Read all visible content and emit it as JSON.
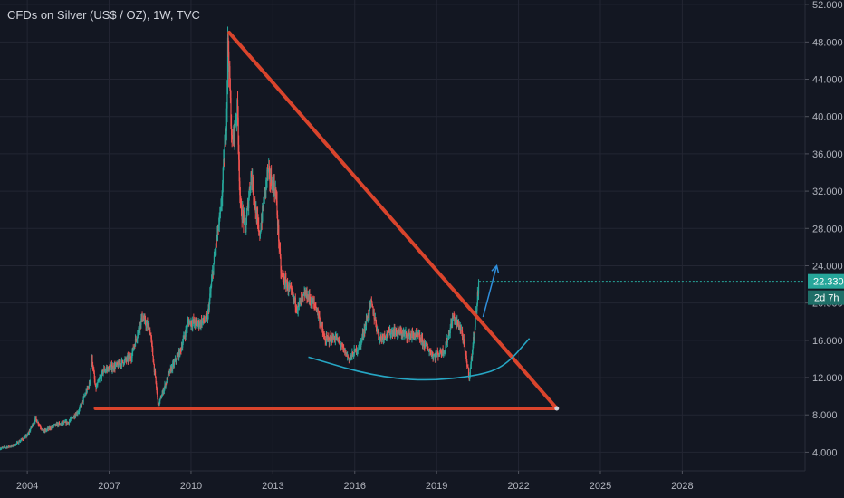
{
  "chart_data": {
    "type": "candlestick",
    "title": "CFDs on Silver (US$ / OZ), 1W, TVC",
    "x_tick_labels": [
      "2004",
      "2007",
      "2010",
      "2013",
      "2016",
      "2019",
      "2022",
      "2025",
      "2028"
    ],
    "y_tick_labels": [
      "52.000",
      "48.000",
      "44.000",
      "40.000",
      "36.000",
      "32.000",
      "28.000",
      "24.000",
      "20.000",
      "16.000",
      "12.000",
      "8.000",
      "4.000"
    ],
    "ylim": [
      2.0,
      52.5
    ],
    "xlim": [
      2003.0,
      2032.5
    ],
    "grid": true,
    "last_price_label": "22.330",
    "last_price": 22.33,
    "countdown_label": "2d 7h",
    "price_path": [
      [
        2003.0,
        4.4
      ],
      [
        2003.5,
        4.7
      ],
      [
        2004.0,
        5.8
      ],
      [
        2004.3,
        7.6
      ],
      [
        2004.6,
        6.2
      ],
      [
        2005.0,
        6.9
      ],
      [
        2005.5,
        7.2
      ],
      [
        2005.9,
        8.5
      ],
      [
        2006.3,
        11.5
      ],
      [
        2006.35,
        14.5
      ],
      [
        2006.5,
        10.8
      ],
      [
        2006.8,
        12.8
      ],
      [
        2007.3,
        13.3
      ],
      [
        2007.8,
        14.2
      ],
      [
        2008.2,
        18.5
      ],
      [
        2008.5,
        17.0
      ],
      [
        2008.8,
        9.0
      ],
      [
        2009.2,
        12.5
      ],
      [
        2009.6,
        14.8
      ],
      [
        2009.9,
        18.0
      ],
      [
        2010.3,
        17.8
      ],
      [
        2010.6,
        18.3
      ],
      [
        2010.9,
        26.0
      ],
      [
        2011.1,
        30.0
      ],
      [
        2011.3,
        40.0
      ],
      [
        2011.35,
        48.4
      ],
      [
        2011.5,
        37.0
      ],
      [
        2011.7,
        41.0
      ],
      [
        2011.8,
        30.5
      ],
      [
        2012.0,
        28.0
      ],
      [
        2012.2,
        34.0
      ],
      [
        2012.5,
        27.0
      ],
      [
        2012.8,
        34.0
      ],
      [
        2013.1,
        32.0
      ],
      [
        2013.3,
        23.0
      ],
      [
        2013.6,
        21.5
      ],
      [
        2013.9,
        19.5
      ],
      [
        2014.2,
        21.0
      ],
      [
        2014.6,
        19.5
      ],
      [
        2014.9,
        16.0
      ],
      [
        2015.3,
        16.3
      ],
      [
        2015.8,
        14.0
      ],
      [
        2016.2,
        15.5
      ],
      [
        2016.6,
        20.0
      ],
      [
        2016.9,
        16.2
      ],
      [
        2017.4,
        17.0
      ],
      [
        2017.9,
        16.6
      ],
      [
        2018.3,
        16.5
      ],
      [
        2018.9,
        14.3
      ],
      [
        2019.3,
        15.0
      ],
      [
        2019.6,
        18.5
      ],
      [
        2019.9,
        17.2
      ],
      [
        2020.2,
        12.0
      ],
      [
        2020.4,
        17.5
      ],
      [
        2020.55,
        22.3
      ]
    ],
    "annotations": {
      "resistance_line": {
        "from": [
          2011.4,
          49.0
        ],
        "to": [
          2023.4,
          8.7
        ],
        "color": "#d9442c"
      },
      "support_line": {
        "from": [
          2006.5,
          8.7
        ],
        "to": [
          2023.4,
          8.7
        ],
        "color": "#d9442c"
      },
      "rounding_bottom_curve": {
        "points": [
          [
            2014.3,
            14.2
          ],
          [
            2016.5,
            12.3
          ],
          [
            2018.5,
            11.6
          ],
          [
            2020.5,
            12.2
          ],
          [
            2021.5,
            13.2
          ],
          [
            2022.4,
            16.2
          ]
        ],
        "color": "#26a6c4"
      },
      "projection_arrow": {
        "from": [
          2020.7,
          18.5
        ],
        "to": [
          2021.2,
          24.0
        ],
        "color": "#2f8fdc"
      }
    },
    "colors": {
      "background": "#131722",
      "grid": "#232633",
      "up_candle": "#26a69a",
      "down_candle": "#ef5350",
      "axis_text": "#b2b5be",
      "price_badge": "#26a69a"
    }
  }
}
